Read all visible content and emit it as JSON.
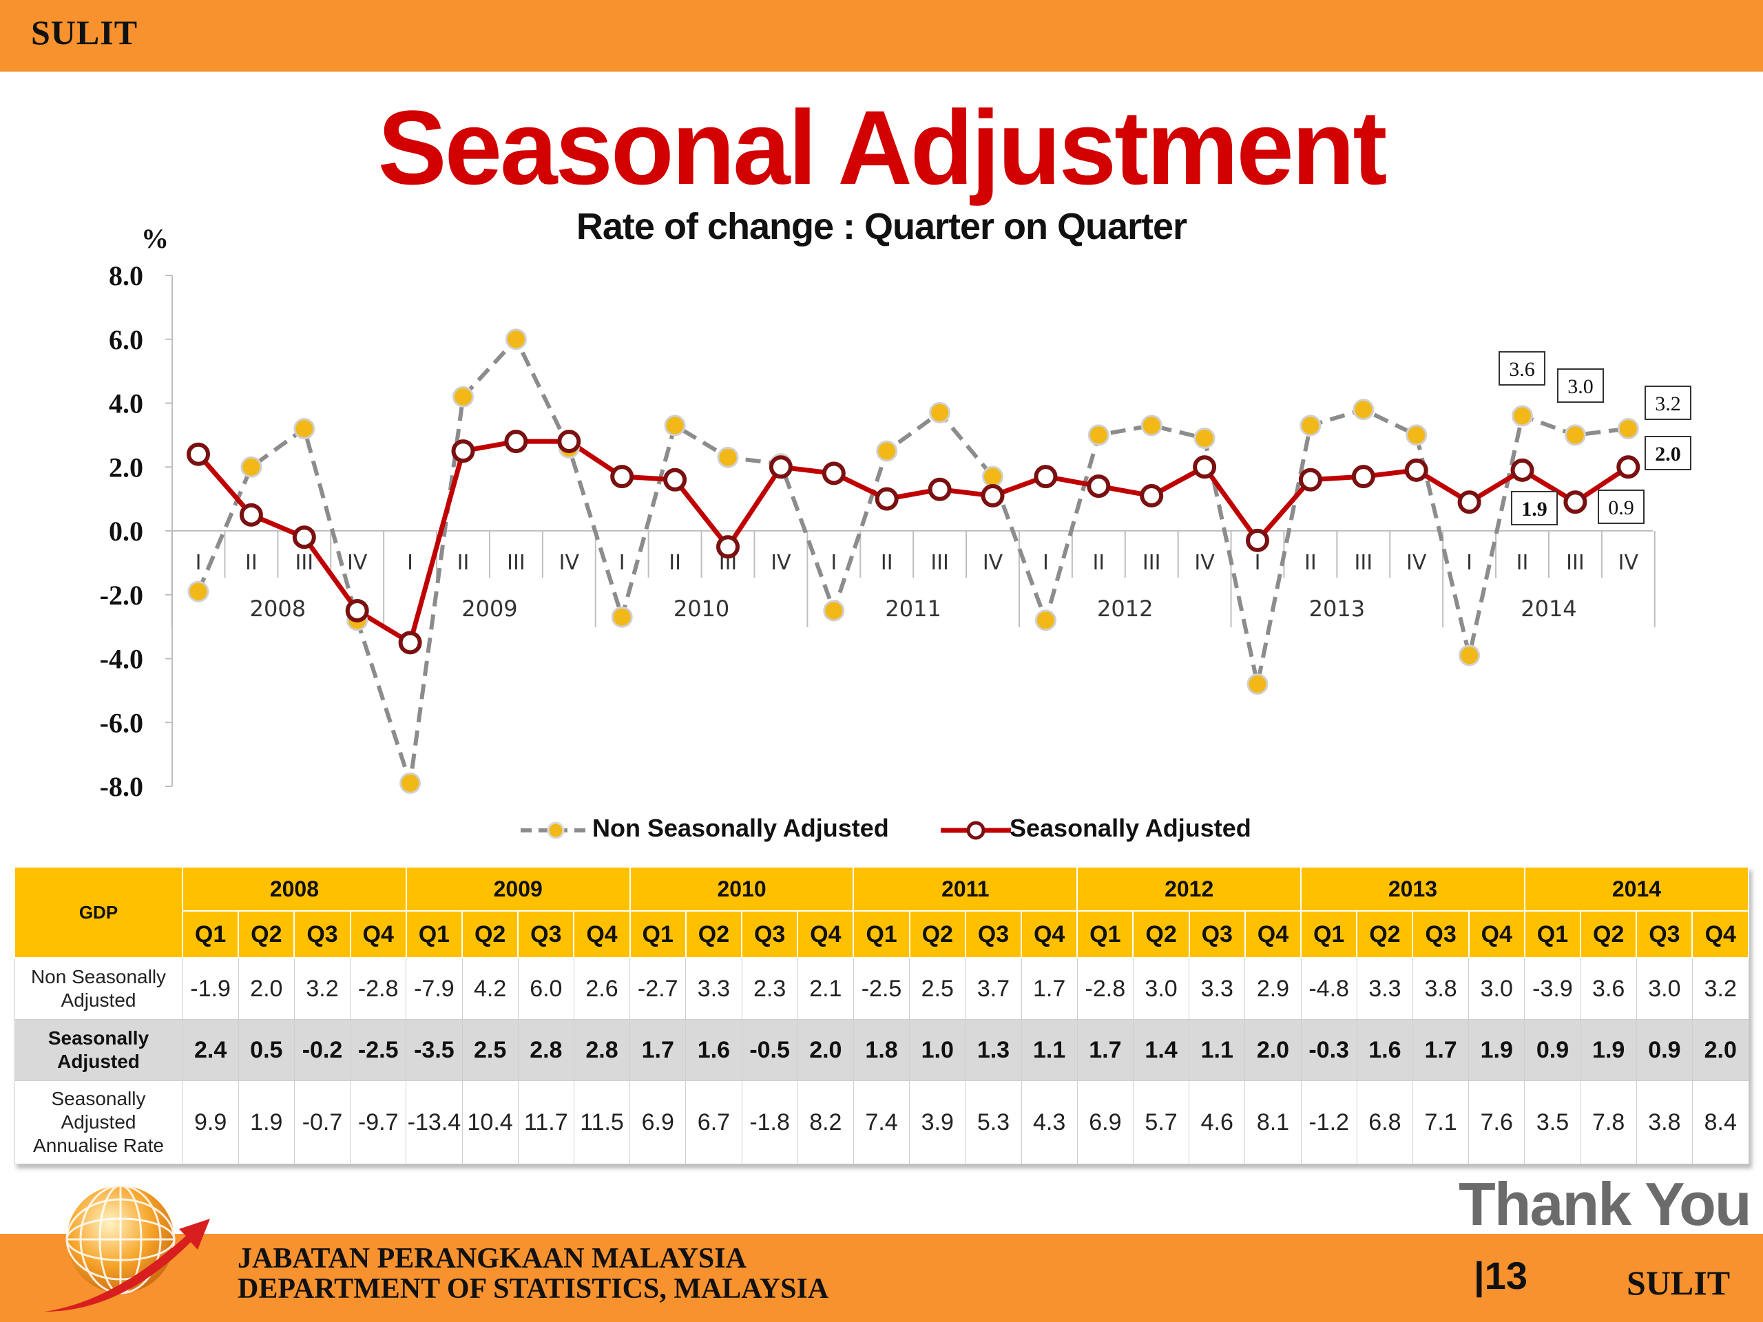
{
  "header": {
    "label": "SULIT"
  },
  "footer": {
    "label": "SULIT",
    "dept_line1": "JABATAN PERANGKAAN MALAYSIA",
    "dept_line2": "DEPARTMENT OF STATISTICS, MALAYSIA",
    "thank_you": "Thank You",
    "page_number": "|13"
  },
  "chart_data": {
    "type": "line",
    "title": "Seasonal Adjustment",
    "subtitle": "Rate of change : Quarter on Quarter",
    "ylabel": "%",
    "ylim": [
      -8.0,
      8.0
    ],
    "yticks": [
      "8.0",
      "6.0",
      "4.0",
      "2.0",
      "0.0",
      "-2.0",
      "-4.0",
      "-6.0",
      "-8.0"
    ],
    "quarter_labels": [
      "I",
      "II",
      "III",
      "IV",
      "I",
      "II",
      "III",
      "IV",
      "I",
      "II",
      "III",
      "IV",
      "I",
      "II",
      "III",
      "IV",
      "I",
      "II",
      "III",
      "IV",
      "I",
      "II",
      "III",
      "IV",
      "I",
      "II",
      "III",
      "IV"
    ],
    "years": [
      "2008",
      "2009",
      "2010",
      "2011",
      "2012",
      "2013",
      "2014"
    ],
    "series": [
      {
        "name": "Non Seasonally Adjusted",
        "color": "#f2b818",
        "line_color": "#8c8c8c",
        "style": "dashed",
        "values": [
          -1.9,
          2.0,
          3.2,
          -2.8,
          -7.9,
          4.2,
          6.0,
          2.6,
          -2.7,
          3.3,
          2.3,
          2.1,
          -2.5,
          2.5,
          3.7,
          1.7,
          -2.8,
          3.0,
          3.3,
          2.9,
          -4.8,
          3.3,
          3.8,
          3.0,
          -3.9,
          3.6,
          3.0,
          3.2
        ]
      },
      {
        "name": "Seasonally Adjusted",
        "color": "#c00000",
        "style": "solid",
        "values": [
          2.4,
          0.5,
          -0.2,
          -2.5,
          -3.5,
          2.5,
          2.8,
          2.8,
          1.7,
          1.6,
          -0.5,
          2.0,
          1.8,
          1.0,
          1.3,
          1.1,
          1.7,
          1.4,
          1.1,
          2.0,
          -0.3,
          1.6,
          1.7,
          1.9,
          0.9,
          1.9,
          0.9,
          2.0
        ]
      }
    ],
    "annotations": [
      {
        "series": 0,
        "index": 25,
        "text": "3.6"
      },
      {
        "series": 0,
        "index": 26,
        "text": "3.0"
      },
      {
        "series": 0,
        "index": 27,
        "text": "3.2"
      },
      {
        "series": 1,
        "index": 25,
        "text": "1.9"
      },
      {
        "series": 1,
        "index": 26,
        "text": "0.9"
      },
      {
        "series": 1,
        "index": 27,
        "text": "2.0"
      }
    ],
    "legend_position": "bottom-center"
  },
  "table": {
    "corner": "GDP",
    "years": [
      "2008",
      "2009",
      "2010",
      "2011",
      "2012",
      "2013",
      "2014"
    ],
    "quarters": [
      "Q1",
      "Q2",
      "Q3",
      "Q4"
    ],
    "rows": [
      {
        "label1": "Non Seasonally",
        "label2": "Adjusted",
        "label3": "",
        "values": [
          "-1.9",
          "2.0",
          "3.2",
          "-2.8",
          "-7.9",
          "4.2",
          "6.0",
          "2.6",
          "-2.7",
          "3.3",
          "2.3",
          "2.1",
          "-2.5",
          "2.5",
          "3.7",
          "1.7",
          "-2.8",
          "3.0",
          "3.3",
          "2.9",
          "-4.8",
          "3.3",
          "3.8",
          "3.0",
          "-3.9",
          "3.6",
          "3.0",
          "3.2"
        ]
      },
      {
        "label1": "Seasonally",
        "label2": "Adjusted",
        "label3": "",
        "values": [
          "2.4",
          "0.5",
          "-0.2",
          "-2.5",
          "-3.5",
          "2.5",
          "2.8",
          "2.8",
          "1.7",
          "1.6",
          "-0.5",
          "2.0",
          "1.8",
          "1.0",
          "1.3",
          "1.1",
          "1.7",
          "1.4",
          "1.1",
          "2.0",
          "-0.3",
          "1.6",
          "1.7",
          "1.9",
          "0.9",
          "1.9",
          "0.9",
          "2.0"
        ]
      },
      {
        "label1": "Seasonally",
        "label2": "Adjusted",
        "label3": "Annualise Rate",
        "values": [
          "9.9",
          "1.9",
          "-0.7",
          "-9.7",
          "-13.4",
          "10.4",
          "11.7",
          "11.5",
          "6.9",
          "6.7",
          "-1.8",
          "8.2",
          "7.4",
          "3.9",
          "5.3",
          "4.3",
          "6.9",
          "5.7",
          "4.6",
          "8.1",
          "-1.2",
          "6.8",
          "7.1",
          "7.6",
          "3.5",
          "7.8",
          "3.8",
          "8.4"
        ]
      }
    ]
  }
}
